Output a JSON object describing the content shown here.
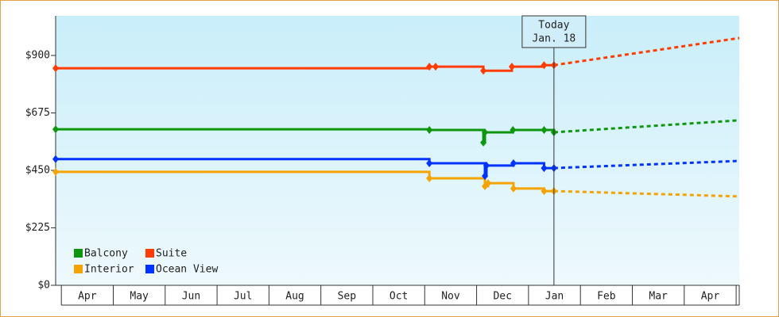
{
  "chart_data": {
    "type": "step-line",
    "annotation": {
      "title": "Today",
      "date": "Jan. 18",
      "x": 9.49
    },
    "categories": [
      "Apr",
      "May",
      "Jun",
      "Jul",
      "Aug",
      "Sep",
      "Oct",
      "Nov",
      "Dec",
      "Jan",
      "Feb",
      "Mar",
      "Apr"
    ],
    "xlim": [
      -0.11,
      13.06
    ],
    "ylim": [
      0,
      1055
    ],
    "yticks": [
      {
        "value": 0,
        "label": "$0"
      },
      {
        "value": 225,
        "label": "$225"
      },
      {
        "value": 450,
        "label": "$450"
      },
      {
        "value": 675,
        "label": "$675"
      },
      {
        "value": 900,
        "label": "$900"
      }
    ],
    "legend": "lower-left",
    "series": [
      {
        "name": "Balcony",
        "color": "#0e960e",
        "x": [
          -0.11,
          7.09,
          8.13,
          8.16,
          8.7,
          9.3,
          9.49
        ],
        "values": [
          611,
          608,
          559,
          599,
          608,
          608,
          599
        ],
        "forecast": {
          "x": [
            9.49,
            13.06
          ],
          "values": [
            599,
            646
          ]
        }
      },
      {
        "name": "Suite",
        "color": "#ff3c00",
        "x": [
          -0.11,
          7.09,
          7.21,
          8.13,
          8.68,
          9.3,
          9.49
        ],
        "values": [
          850,
          856,
          856,
          840,
          856,
          862,
          862
        ],
        "forecast": {
          "x": [
            9.49,
            13.06
          ],
          "values": [
            862,
            968
          ]
        }
      },
      {
        "name": "Interior",
        "color": "#f5a300",
        "x": [
          -0.11,
          7.09,
          8.16,
          8.22,
          8.71,
          9.3,
          9.49
        ],
        "values": [
          444,
          419,
          388,
          400,
          379,
          369,
          369
        ],
        "forecast": {
          "x": [
            9.49,
            13.06
          ],
          "values": [
            369,
            348
          ]
        }
      },
      {
        "name": "Ocean View",
        "color": "#0033ff",
        "x": [
          -0.11,
          7.09,
          8.16,
          8.19,
          8.71,
          9.3,
          9.49
        ],
        "values": [
          494,
          478,
          428,
          469,
          478,
          459,
          459
        ],
        "forecast": {
          "x": [
            9.49,
            13.06
          ],
          "values": [
            459,
            487
          ]
        }
      }
    ]
  }
}
